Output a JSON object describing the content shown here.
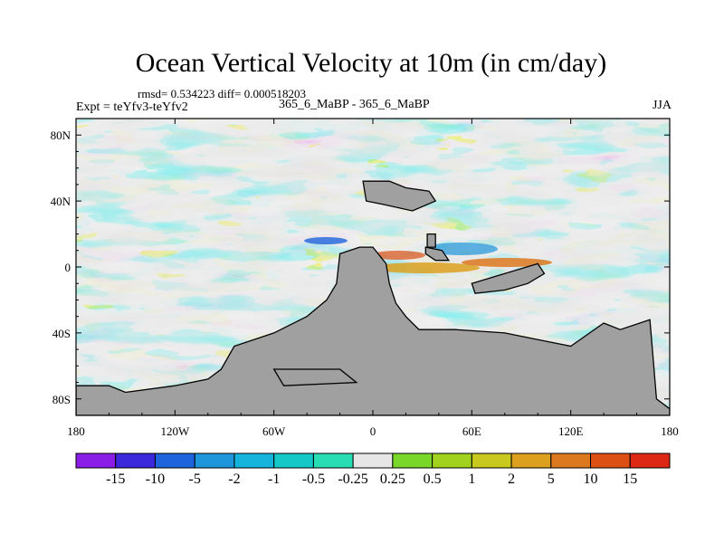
{
  "chart_data": {
    "type": "heatmap",
    "title": "Ocean Vertical Velocity at 10m (in cm/day)",
    "stats_line": "rmsd= 0.534223 diff= 0.000518203",
    "experiment_label": "Expt = teYfv3-teYfv2",
    "case_label": "365_6_MaBP - 365_6_MaBP",
    "season": "JJA",
    "xlim": [
      -180,
      180
    ],
    "ylim": [
      -90,
      90
    ],
    "x_ticks": [
      {
        "value": -180,
        "label": "180"
      },
      {
        "value": -120,
        "label": "120W"
      },
      {
        "value": -60,
        "label": "60W"
      },
      {
        "value": 0,
        "label": "0"
      },
      {
        "value": 60,
        "label": "60E"
      },
      {
        "value": 120,
        "label": "120E"
      },
      {
        "value": 180,
        "label": "180"
      }
    ],
    "y_ticks": [
      {
        "value": 80,
        "label": "80N"
      },
      {
        "value": 40,
        "label": "40N"
      },
      {
        "value": 0,
        "label": "0"
      },
      {
        "value": -40,
        "label": "40S"
      },
      {
        "value": -80,
        "label": "80S"
      }
    ],
    "colorbar": {
      "labels": [
        "-15",
        "-10",
        "-5",
        "-2",
        "-1",
        "-0.5",
        "-0.25",
        "0.25",
        "0.5",
        "1",
        "2",
        "5",
        "10",
        "15"
      ],
      "colors": [
        "#8a1ee6",
        "#3c28dc",
        "#1e64dc",
        "#1e96dc",
        "#14b4dc",
        "#14c8c8",
        "#28dcb4",
        "#e6e6e6",
        "#78d728",
        "#a0d21e",
        "#c8c81e",
        "#dca01e",
        "#dc781e",
        "#dc5014",
        "#dc2814"
      ]
    },
    "land_color": "#a0a0a0",
    "continents": [
      {
        "name": "land-antarctica-pangea-south",
        "points": [
          [
            -180,
            -72
          ],
          [
            -160,
            -72
          ],
          [
            -150,
            -76
          ],
          [
            -120,
            -72
          ],
          [
            -100,
            -68
          ],
          [
            -92,
            -62
          ],
          [
            -84,
            -48
          ],
          [
            -60,
            -40
          ],
          [
            -40,
            -30
          ],
          [
            -28,
            -20
          ],
          [
            -22,
            -10
          ],
          [
            -20,
            8
          ],
          [
            -8,
            12
          ],
          [
            0,
            12
          ],
          [
            8,
            2
          ],
          [
            10,
            -10
          ],
          [
            14,
            -22
          ],
          [
            20,
            -30
          ],
          [
            28,
            -38
          ],
          [
            50,
            -38
          ],
          [
            80,
            -40
          ],
          [
            100,
            -44
          ],
          [
            120,
            -48
          ],
          [
            140,
            -34
          ],
          [
            150,
            -38
          ],
          [
            168,
            -32
          ],
          [
            170,
            -56
          ],
          [
            172,
            -80
          ],
          [
            180,
            -86
          ],
          [
            180,
            -90
          ],
          [
            -180,
            -90
          ]
        ]
      },
      {
        "name": "land-south-wedge",
        "points": [
          [
            -60,
            -62
          ],
          [
            -20,
            -62
          ],
          [
            -10,
            -70
          ],
          [
            -54,
            -72
          ]
        ]
      },
      {
        "name": "land-north-block",
        "points": [
          [
            -6,
            52
          ],
          [
            10,
            52
          ],
          [
            20,
            48
          ],
          [
            34,
            46
          ],
          [
            38,
            40
          ],
          [
            24,
            34
          ],
          [
            6,
            38
          ],
          [
            -4,
            40
          ]
        ]
      },
      {
        "name": "land-east-arm",
        "points": [
          [
            60,
            -10
          ],
          [
            80,
            -4
          ],
          [
            100,
            2
          ],
          [
            104,
            -4
          ],
          [
            94,
            -10
          ],
          [
            80,
            -14
          ],
          [
            62,
            -16
          ]
        ]
      },
      {
        "name": "land-island-a",
        "points": [
          [
            32,
            12
          ],
          [
            42,
            10
          ],
          [
            46,
            4
          ],
          [
            38,
            4
          ],
          [
            32,
            8
          ]
        ]
      },
      {
        "name": "land-island-b",
        "points": [
          [
            33,
            20
          ],
          [
            38,
            20
          ],
          [
            38,
            12
          ],
          [
            33,
            12
          ]
        ]
      }
    ]
  }
}
